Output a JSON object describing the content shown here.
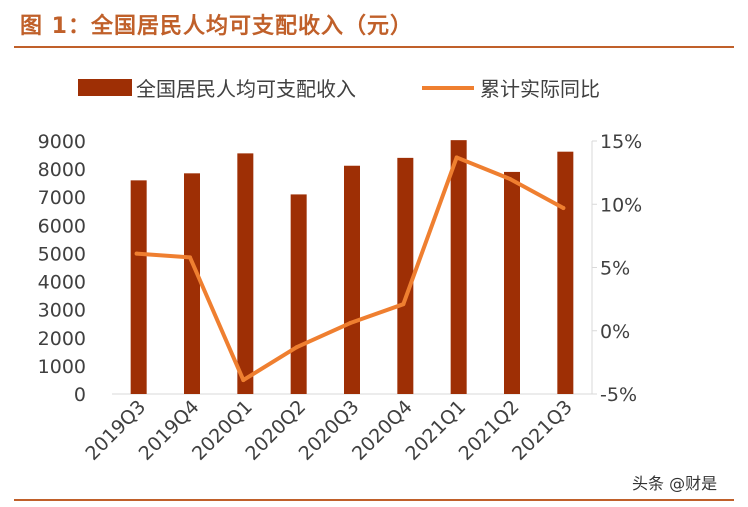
{
  "title": "图 1：全国居民人均可支配收入（元）",
  "watermark": "头条 @财是",
  "colors": {
    "bar": "#9e2f05",
    "line": "#ef7f30",
    "accent": "#c0602a",
    "axis": "#d9d9d9",
    "text": "#404040"
  },
  "chart_data": {
    "type": "bar+line",
    "categories": [
      "2019Q3",
      "2019Q4",
      "2020Q1",
      "2020Q2",
      "2020Q3",
      "2020Q4",
      "2021Q1",
      "2021Q2",
      "2021Q3"
    ],
    "series": [
      {
        "name": "全国居民人均可支配收入",
        "type": "bar",
        "axis": "left",
        "values": [
          7600,
          7850,
          8560,
          7100,
          8120,
          8400,
          9030,
          7900,
          8620
        ]
      },
      {
        "name": "累计实际同比",
        "type": "line",
        "axis": "right",
        "values": [
          6.1,
          5.8,
          -3.9,
          -1.3,
          0.6,
          2.1,
          13.7,
          12.0,
          9.7
        ]
      }
    ],
    "left_axis": {
      "min": 0,
      "max": 9000,
      "ticks": [
        0,
        1000,
        2000,
        3000,
        4000,
        5000,
        6000,
        7000,
        8000,
        9000
      ],
      "tick_labels": [
        "0",
        "1000",
        "2000",
        "3000",
        "4000",
        "5000",
        "6000",
        "7000",
        "8000",
        "9000"
      ]
    },
    "right_axis": {
      "min": -5,
      "max": 15,
      "ticks": [
        -5,
        0,
        5,
        10,
        15
      ],
      "tick_labels": [
        "-5%",
        "0%",
        "5%",
        "10%",
        "15%"
      ]
    },
    "legend_position": "top",
    "grid": false
  }
}
